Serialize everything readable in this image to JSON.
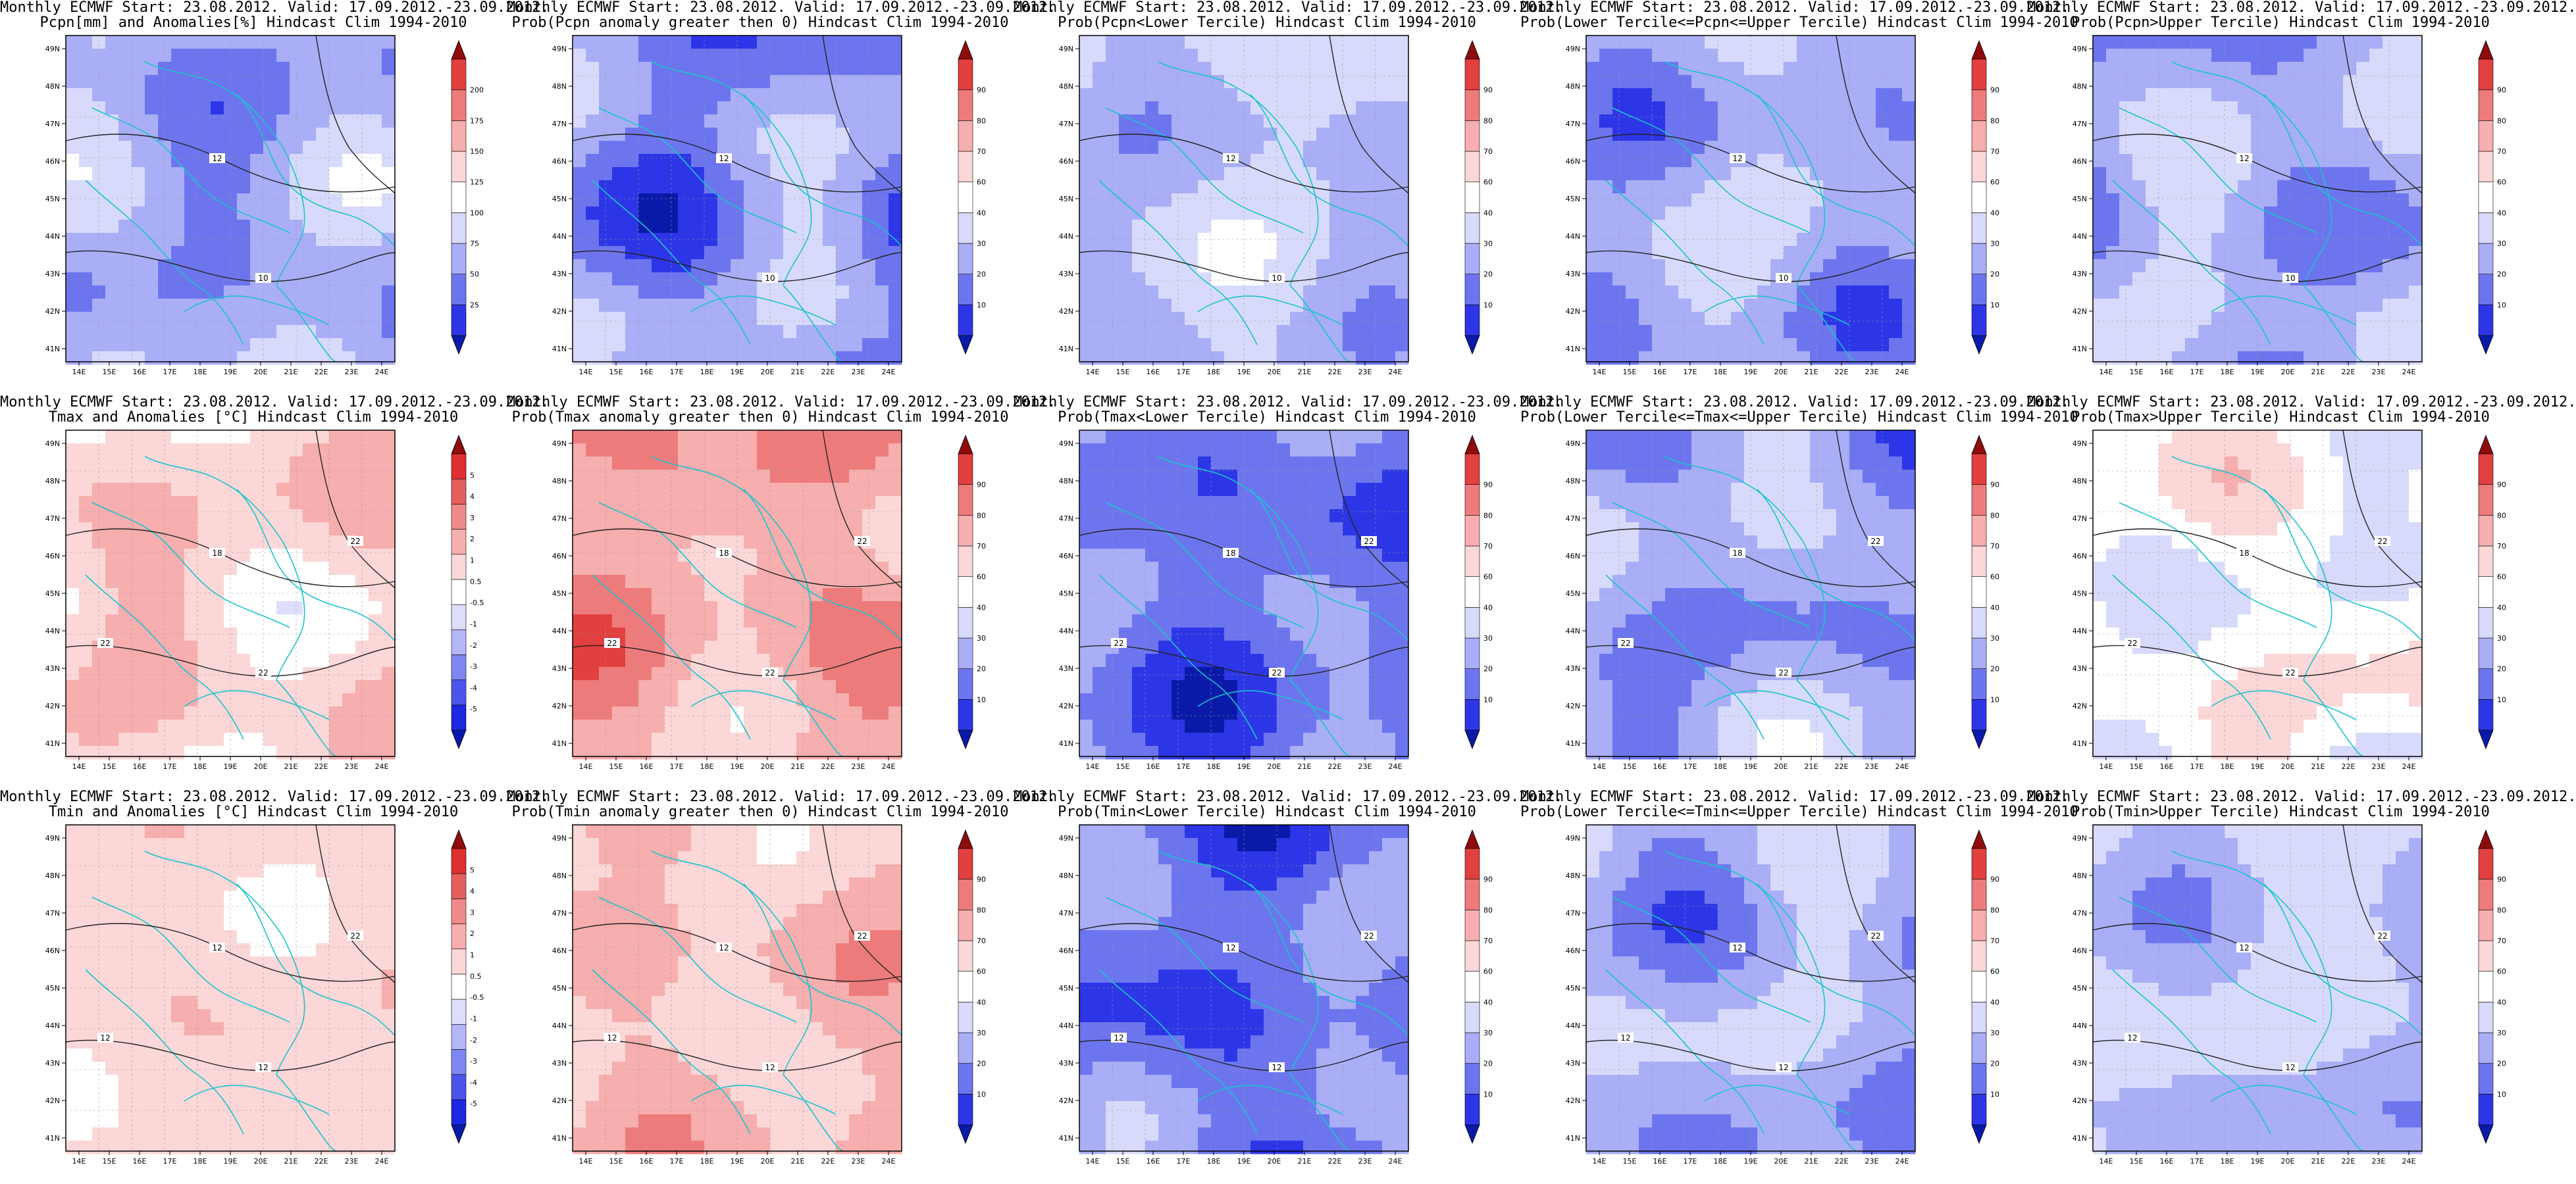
{
  "common": {
    "x_tick_labels": [
      "14E",
      "15E",
      "16E",
      "17E",
      "18E",
      "19E",
      "20E",
      "21E",
      "22E",
      "23E",
      "24E"
    ],
    "y_tick_labels": [
      "41N",
      "42N",
      "43N",
      "44N",
      "45N",
      "46N",
      "47N",
      "48N",
      "49N"
    ]
  },
  "palettes": {
    "anomaly_colors": [
      "#0a1aa8",
      "#1b28e0",
      "#4b55ec",
      "#7f86f1",
      "#b3b7f7",
      "#dcdefb",
      "#ffffff",
      "#fbd7d7",
      "#f6aeae",
      "#f08a8a",
      "#e65f5f",
      "#df2f2f",
      "#8e0c0c"
    ],
    "precip_colors": [
      "#0a1aa8",
      "#2d36e6",
      "#6d75ee",
      "#a9aef6",
      "#d8dafb",
      "#ffffff",
      "#fbd7d7",
      "#f6aeae",
      "#ee7b7b",
      "#e23f3f",
      "#8e0c0c"
    ],
    "prob_colors": [
      "#0a1aa8",
      "#2d36e6",
      "#6d75ee",
      "#a9aef6",
      "#d8dafb",
      "#ffffff",
      "#fbd7d7",
      "#f6aeae",
      "#ee7b7b",
      "#e23f3f",
      "#8e0c0c"
    ]
  },
  "colorbar_labels": {
    "pcpn": [
      "25",
      "50",
      "75",
      "100",
      "125",
      "150",
      "175",
      "200"
    ],
    "prob": [
      "10",
      "20",
      "30",
      "40",
      "60",
      "70",
      "80",
      "90"
    ],
    "temp": [
      "-5",
      "-4",
      "-3",
      "-2",
      "-1",
      "-0.5",
      "0.5",
      "1",
      "2",
      "3",
      "4",
      "5"
    ]
  },
  "panels": [
    {
      "title1": "Monthly ECMWF Start: 23.08.2012. Valid: 17.09.2012.-23.09.2012.",
      "title2": "Pcpn[mm] and Anomalies[%] Hindcast Clim 1994-2010",
      "cbar": "pcpn",
      "contour_labels": [
        "12",
        "10"
      ]
    },
    {
      "title1": "Monthly ECMWF Start: 23.08.2012. Valid: 17.09.2012.-23.09.2012.",
      "title2": "Prob(Pcpn anomaly greater then 0) Hindcast Clim 1994-2010",
      "cbar": "prob",
      "contour_labels": [
        "12",
        "10"
      ]
    },
    {
      "title1": "Monthly ECMWF Start: 23.08.2012. Valid: 17.09.2012.-23.09.2012.",
      "title2": "Prob(Pcpn<Lower Tercile) Hindcast Clim 1994-2010",
      "cbar": "prob",
      "contour_labels": [
        "12",
        "10"
      ]
    },
    {
      "title1": "Monthly ECMWF Start: 23.08.2012. Valid: 17.09.2012.-23.09.2012.",
      "title2": "Prob(Lower Tercile<=Pcpn<=Upper Tercile) Hindcast Clim 1994-2010",
      "cbar": "prob",
      "contour_labels": [
        "12",
        "10"
      ]
    },
    {
      "title1": "Monthly ECMWF Start: 23.08.2012. Valid: 17.09.2012.-23.09.2012.",
      "title2": "Prob(Pcpn>Upper Tercile) Hindcast Clim 1994-2010",
      "cbar": "prob",
      "contour_labels": [
        "12",
        "10"
      ]
    },
    {
      "title1": "Monthly ECMWF Start: 23.08.2012. Valid: 17.09.2012.-23.09.2012.",
      "title2": "Tmax and Anomalies [°C] Hindcast Clim 1994-2010",
      "cbar": "temp",
      "contour_labels": [
        "18",
        "22",
        "22",
        "22"
      ]
    },
    {
      "title1": "Monthly ECMWF Start: 23.08.2012. Valid: 17.09.2012.-23.09.2012.",
      "title2": "Prob(Tmax anomaly greater then 0) Hindcast Clim 1994-2010",
      "cbar": "prob",
      "contour_labels": [
        "18",
        "22",
        "22",
        "22"
      ]
    },
    {
      "title1": "Monthly ECMWF Start: 23.08.2012. Valid: 17.09.2012.-23.09.2012.",
      "title2": "Prob(Tmax<Lower Tercile) Hindcast Clim 1994-2010",
      "cbar": "prob",
      "contour_labels": [
        "18",
        "22",
        "22",
        "22"
      ]
    },
    {
      "title1": "Monthly ECMWF Start: 23.08.2012. Valid: 17.09.2012.-23.09.2012.",
      "title2": "Prob(Lower Tercile<=Tmax<=Upper Tercile) Hindcast Clim 1994-2010",
      "cbar": "prob",
      "contour_labels": [
        "18",
        "22",
        "22",
        "22"
      ]
    },
    {
      "title1": "Monthly ECMWF Start: 23.08.2012. Valid: 17.09.2012.-23.09.2012.",
      "title2": "Prob(Tmax>Upper Tercile) Hindcast Clim 1994-2010",
      "cbar": "prob",
      "contour_labels": [
        "18",
        "22",
        "22",
        "22"
      ]
    },
    {
      "title1": "Monthly ECMWF Start: 23.08.2012. Valid: 17.09.2012.-23.09.2012.",
      "title2": "Tmin and Anomalies [°C] Hindcast Clim 1994-2010",
      "cbar": "temp",
      "contour_labels": [
        "12",
        "12",
        "12",
        "22"
      ]
    },
    {
      "title1": "Monthly ECMWF Start: 23.08.2012. Valid: 17.09.2012.-23.09.2012.",
      "title2": "Prob(Tmin anomaly greater then 0) Hindcast Clim 1994-2010",
      "cbar": "prob",
      "contour_labels": [
        "12",
        "12",
        "12",
        "22"
      ]
    },
    {
      "title1": "Monthly ECMWF Start: 23.08.2012. Valid: 17.09.2012.-23.09.2012.",
      "title2": "Prob(Tmin<Lower Tercile) Hindcast Clim 1994-2010",
      "cbar": "prob",
      "contour_labels": [
        "12",
        "12",
        "12",
        "22"
      ]
    },
    {
      "title1": "Monthly ECMWF Start: 23.08.2012. Valid: 17.09.2012.-23.09.2012.",
      "title2": "Prob(Lower Tercile<=Tmin<=Upper Tercile) Hindcast Clim 1994-2010",
      "cbar": "prob",
      "contour_labels": [
        "12",
        "12",
        "12",
        "22"
      ]
    },
    {
      "title1": "Monthly ECMWF Start: 23.08.2012. Valid: 17.09.2012.-23.09.2012.",
      "title2": "Prob(Tmin>Upper Tercile) Hindcast Clim 1994-2010",
      "cbar": "prob",
      "contour_labels": [
        "12",
        "12",
        "12",
        "22"
      ]
    }
  ],
  "chart_data": {
    "type": "heatmap",
    "x": [
      "14E",
      "15E",
      "16E",
      "17E",
      "18E",
      "19E",
      "20E",
      "21E",
      "22E",
      "23E",
      "24E"
    ],
    "y": [
      "41N",
      "42N",
      "43N",
      "44N",
      "45N",
      "46N",
      "47N",
      "48N",
      "49N"
    ],
    "colorbars": {
      "pcpn": [
        25,
        50,
        75,
        100,
        125,
        150,
        175,
        200
      ],
      "prob": [
        10,
        20,
        30,
        40,
        60,
        70,
        80,
        90
      ],
      "temp": [
        -5,
        -4,
        -3,
        -2,
        -1,
        -0.5,
        0.5,
        1,
        2,
        3,
        4,
        5
      ]
    },
    "grid": true
  }
}
